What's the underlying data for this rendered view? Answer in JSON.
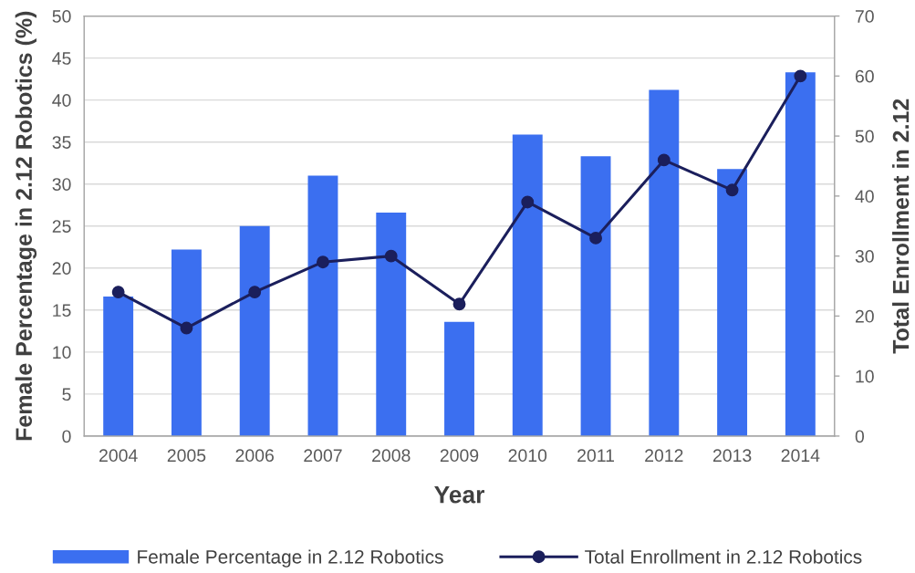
{
  "chart_data": {
    "type": "bar",
    "xlabel": "Year",
    "ylabel": "Female Percentage in 2.12 Robotics (%)",
    "y2label": "Total Enrollment in 2.12",
    "categories": [
      "2004",
      "2005",
      "2006",
      "2007",
      "2008",
      "2009",
      "2010",
      "2011",
      "2012",
      "2013",
      "2014"
    ],
    "series": [
      {
        "name": "Female Percentage in 2.12 Robotics",
        "color": "#3b6ff0",
        "values": [
          16.6,
          22.2,
          25.0,
          31.0,
          26.6,
          13.6,
          35.9,
          33.3,
          41.2,
          31.8,
          43.3
        ]
      },
      {
        "name": "Total Enrollment in 2.12 Robotics",
        "type": "line",
        "axis": "y2",
        "color": "#1b1f5c",
        "marker": "circle",
        "line_style": "solid",
        "values": [
          24,
          18,
          24,
          29,
          30,
          22,
          39,
          33,
          46,
          41,
          60
        ]
      }
    ],
    "ylim": [
      0,
      50
    ],
    "yticks": [
      0,
      5,
      10,
      15,
      20,
      25,
      30,
      35,
      40,
      45,
      50
    ],
    "y2lim": [
      0,
      70
    ],
    "y2ticks": [
      0,
      10,
      20,
      30,
      40,
      50,
      60,
      70
    ],
    "grid": "y",
    "legend": "bottom"
  }
}
